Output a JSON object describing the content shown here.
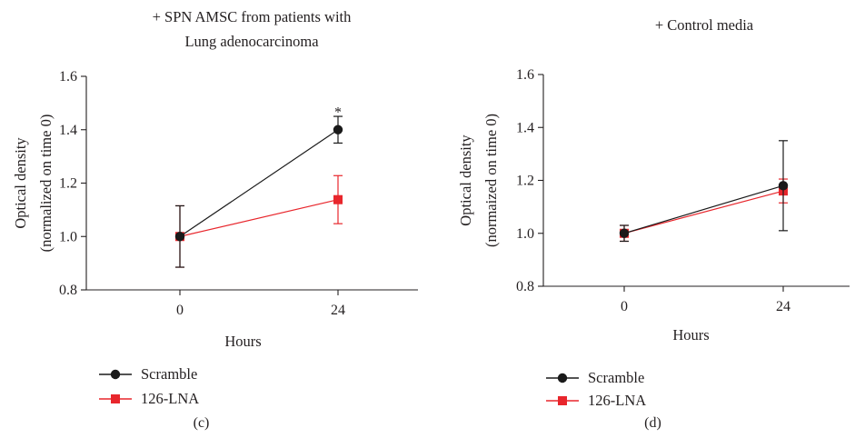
{
  "colors": {
    "scramble": "#1a1a1a",
    "lna": "#e8262c",
    "axis": "#231f20"
  },
  "chart_data": [
    {
      "type": "line",
      "panel_label": "(c)",
      "title": "+ SPN AMSC from patients with\nLung adenocarcinoma",
      "xlabel": "Hours",
      "ylabel": "Optical density\n(normalized on time 0)",
      "x": [
        0,
        24
      ],
      "ylim": [
        0.8,
        1.6
      ],
      "yticks": [
        "0.8",
        "1.0",
        "1.2",
        "1.4",
        "1.6"
      ],
      "xticks": [
        "0",
        "24"
      ],
      "series": [
        {
          "name": "Scramble",
          "values": [
            1.0,
            1.4
          ],
          "err": [
            0.115,
            0.05
          ],
          "marker": "circle",
          "color": "#1a1a1a"
        },
        {
          "name": "126-LNA",
          "values": [
            1.0,
            1.138
          ],
          "err": [
            0.115,
            0.09
          ],
          "marker": "square",
          "color": "#e8262c"
        }
      ],
      "annotations": [
        {
          "text": "*",
          "x": 24,
          "y": 1.48
        }
      ],
      "legend": "bottom-left"
    },
    {
      "type": "line",
      "panel_label": "(d)",
      "title": "+ Control media",
      "xlabel": "Hours",
      "ylabel": "Optical density\n(normaized on time 0)",
      "x": [
        0,
        24
      ],
      "ylim": [
        0.8,
        1.6
      ],
      "yticks": [
        "0.8",
        "1.0",
        "1.2",
        "1.4",
        "1.6"
      ],
      "xticks": [
        "0",
        "24"
      ],
      "series": [
        {
          "name": "Scramble",
          "values": [
            1.0,
            1.18
          ],
          "err": [
            0.03,
            0.17
          ],
          "marker": "circle",
          "color": "#1a1a1a"
        },
        {
          "name": "126-LNA",
          "values": [
            1.0,
            1.16
          ],
          "err": [
            0.03,
            0.045
          ],
          "marker": "square",
          "color": "#e8262c"
        }
      ],
      "annotations": [],
      "legend": "bottom-left"
    }
  ]
}
